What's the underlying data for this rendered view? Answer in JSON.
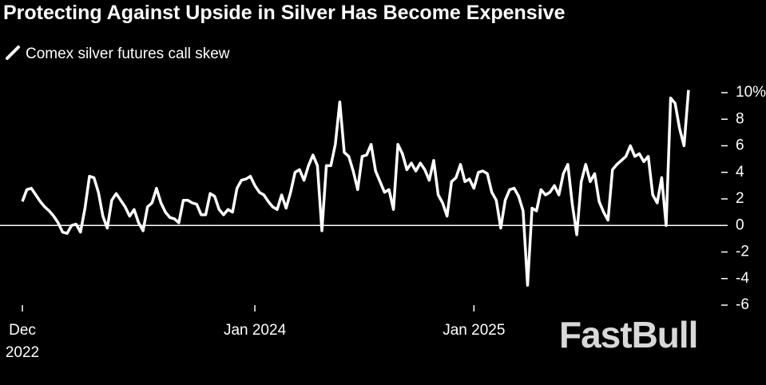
{
  "chart_data": {
    "type": "line",
    "title": "Protecting Against Upside in Silver Has Become Expensive",
    "watermark": "FastBull",
    "categories": [
      "Dec 2022",
      null,
      null,
      null,
      null,
      null,
      null,
      null,
      null,
      null,
      null,
      null,
      null,
      null,
      null,
      null,
      null,
      null,
      null,
      null,
      null,
      null,
      null,
      null,
      null,
      null,
      null,
      null,
      null,
      null,
      null,
      null,
      null,
      null,
      null,
      null,
      null,
      null,
      null,
      null,
      null,
      null,
      null,
      null,
      null,
      null,
      null,
      null,
      null,
      null,
      null,
      null,
      "Jan 2024",
      null,
      null,
      null,
      null,
      null,
      null,
      null,
      null,
      null,
      null,
      null,
      null,
      null,
      null,
      null,
      null,
      null,
      null,
      null,
      null,
      null,
      null,
      null,
      null,
      null,
      null,
      null,
      null,
      null,
      null,
      null,
      null,
      null,
      null,
      null,
      null,
      null,
      null,
      null,
      null,
      null,
      null,
      null,
      null,
      null,
      null,
      null,
      null,
      "Jan 2025",
      null,
      null,
      null,
      null,
      null,
      null,
      null,
      null,
      null,
      null,
      null,
      null,
      null,
      null,
      null,
      null,
      null,
      null,
      null,
      null,
      null,
      null,
      null,
      null,
      null,
      null,
      null,
      null,
      null,
      null,
      null,
      null,
      null,
      null,
      null,
      null,
      null,
      null,
      null,
      null,
      null,
      null,
      null,
      null,
      null,
      null,
      null,
      null
    ],
    "series": [
      {
        "name": "Comex silver futures call skew",
        "color": "#ffffff",
        "values": [
          1.8,
          2.7,
          2.8,
          2.3,
          1.8,
          1.4,
          1.1,
          0.7,
          0.2,
          -0.5,
          -0.6,
          0,
          0.1,
          -0.5,
          1.3,
          3.7,
          3.6,
          2.5,
          0.7,
          -0.2,
          1.9,
          2.4,
          1.9,
          1.4,
          0.7,
          1.2,
          0.2,
          -0.4,
          1.4,
          1.7,
          2.8,
          1.7,
          1.0,
          0.6,
          0.5,
          0.2,
          1.9,
          1.9,
          1.7,
          1.6,
          0.8,
          0.8,
          2.4,
          2.2,
          1.2,
          0.8,
          1.2,
          1.0,
          2.8,
          3.4,
          3.5,
          3.7,
          3.0,
          2.5,
          2.3,
          1.8,
          1.4,
          1.2,
          2.3,
          1.3,
          2.5,
          4.0,
          4.2,
          3.4,
          4.5,
          5.3,
          4.5,
          -0.4,
          4.5,
          4.5,
          6.1,
          9.3,
          5.5,
          5.2,
          4.1,
          2.7,
          5.2,
          5.3,
          6.1,
          4.1,
          3.3,
          2.5,
          2.7,
          1.2,
          6.1,
          5.4,
          4.2,
          4.7,
          4.1,
          4.7,
          4.2,
          3.4,
          4.9,
          2.3,
          1.7,
          0.7,
          3.3,
          3.6,
          4.6,
          3.3,
          3.5,
          2.8,
          4.0,
          4.1,
          3.9,
          2.5,
          1.9,
          -0.2,
          1.9,
          2.7,
          2.8,
          2.2,
          1.1,
          -4.5,
          1.3,
          1.1,
          2.7,
          2.3,
          2.5,
          3.0,
          2.3,
          3.9,
          4.6,
          1.6,
          -0.7,
          3.3,
          4.6,
          3.3,
          3.9,
          1.8,
          1.0,
          0.4,
          4.2,
          4.6,
          4.9,
          5.2,
          6.0,
          5.2,
          5.4,
          4.8,
          5.2,
          2.3,
          1.7,
          3.6,
          0.0,
          9.6,
          9.2,
          7.3,
          6.0,
          10.2
        ]
      }
    ],
    "ylim": [
      -6,
      10
    ],
    "yticks": [
      {
        "value": 10,
        "label": "10%"
      },
      8,
      6,
      4,
      2,
      0,
      -2,
      -4,
      -6
    ],
    "zero_line": true,
    "grid": false
  }
}
